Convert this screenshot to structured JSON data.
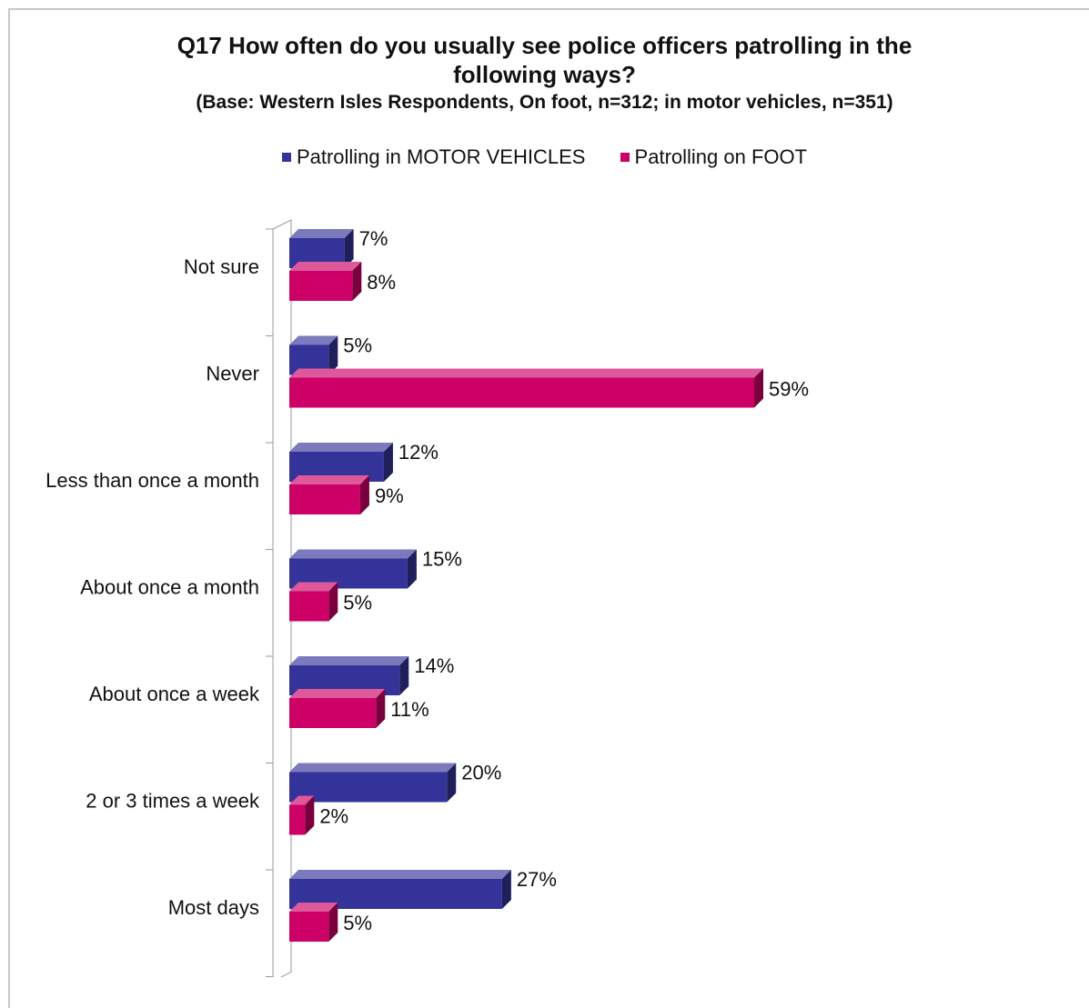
{
  "chart_data": {
    "type": "bar",
    "orientation": "horizontal",
    "title": "Q17 How often do you usually see police officers patrolling in the following ways?",
    "title_line1": "Q17 How often do you usually see police officers patrolling in the",
    "title_line2": "following ways?",
    "subtitle": "(Base: Western Isles Respondents, On foot, n=312; in motor vehicles, n=351)",
    "categories": [
      "Not sure",
      "Never",
      "Less than once a month",
      "About once a month",
      "About once a week",
      "2 or 3 times a week",
      "Most days"
    ],
    "series": [
      {
        "name": "Patrolling in MOTOR VEHICLES",
        "values": [
          7,
          5,
          12,
          15,
          14,
          20,
          27
        ],
        "labels": [
          "7%",
          "5%",
          "12%",
          "15%",
          "14%",
          "20%",
          "27%"
        ],
        "color": "#333399"
      },
      {
        "name": "Patrolling on FOOT",
        "values": [
          8,
          59,
          9,
          5,
          11,
          2,
          5
        ],
        "labels": [
          "8%",
          "59%",
          "9%",
          "5%",
          "11%",
          "2%",
          "5%"
        ],
        "color": "#cc0066"
      }
    ],
    "value_unit": "%",
    "xlim": [
      0,
      60
    ],
    "legend_position": "top",
    "grid": false,
    "value_axis_visible": false,
    "style": "3d"
  }
}
